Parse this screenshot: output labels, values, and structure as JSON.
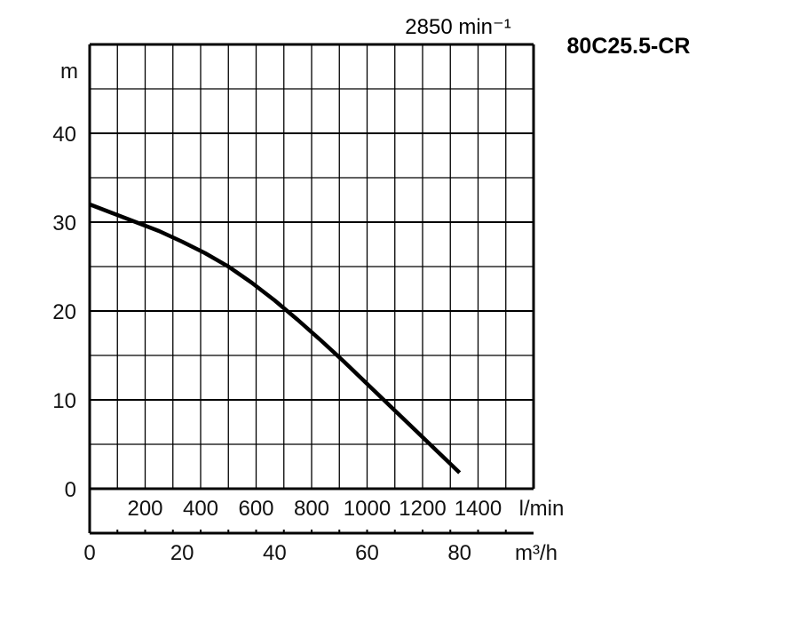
{
  "chart_data": {
    "type": "line",
    "title": "80C25.5-CR",
    "speed": "2850 min⁻¹",
    "ylabel": "m",
    "y_ticks": [
      "0",
      "10",
      "20",
      "30",
      "40"
    ],
    "ylim": [
      0,
      50
    ],
    "x_lmin_unit": "l/min",
    "x_lmin_ticks": [
      "200",
      "400",
      "600",
      "800",
      "1000",
      "1200",
      "1400"
    ],
    "x_m3h_unit": "m³/h",
    "x_m3h_ticks": [
      "0",
      "20",
      "40",
      "60",
      "80"
    ],
    "xlim_m3h": [
      0,
      96
    ],
    "grid": true,
    "series": [
      {
        "x_unit": "m³/h",
        "y_unit": "m",
        "x": [
          0,
          5,
          10,
          15,
          20,
          25,
          30,
          35,
          40,
          45,
          50,
          55,
          60,
          65,
          70,
          75,
          80
        ],
        "y": [
          32,
          31,
          30,
          29,
          27.8,
          26.5,
          25,
          23.2,
          21.2,
          19,
          16.7,
          14.3,
          11.8,
          9.3,
          6.8,
          4.3,
          1.8
        ]
      }
    ]
  }
}
